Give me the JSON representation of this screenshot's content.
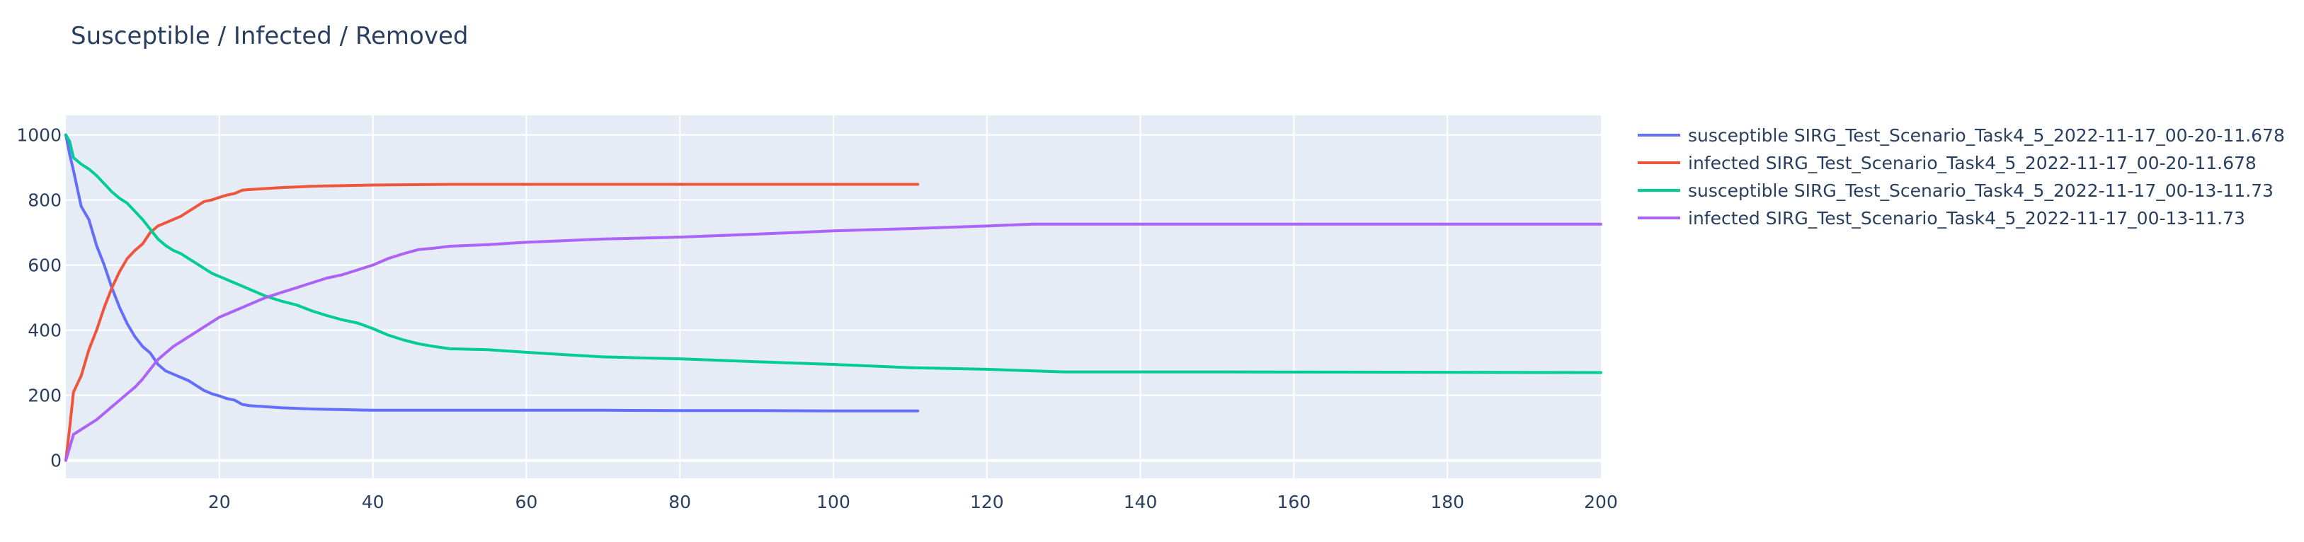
{
  "chart_data": {
    "type": "line",
    "title": "Susceptible / Infected / Removed",
    "xlabel": "",
    "ylabel": "",
    "xlim": [
      0,
      200
    ],
    "ylim": [
      -55,
      1060
    ],
    "x_ticks": [
      20,
      40,
      60,
      80,
      100,
      120,
      140,
      160,
      180,
      200
    ],
    "y_ticks": [
      0,
      200,
      400,
      600,
      800,
      1000
    ],
    "grid": true,
    "legend_position": "right",
    "colors": {
      "plot_background": "#e5ecf6",
      "grid": "#ffffff",
      "text": "#2a3f5f"
    },
    "series": [
      {
        "name": "susceptible SIRG_Test_Scenario_Task4_5_2022-11-17_00-20-11.678",
        "color": "#636efa",
        "x": [
          0,
          0.5,
          1,
          2,
          3,
          4,
          5,
          6,
          7,
          8,
          9,
          10,
          11,
          12,
          13,
          14,
          15,
          16,
          17,
          18,
          19,
          20,
          21,
          22,
          23,
          24,
          26,
          28,
          30,
          32,
          34,
          36,
          38,
          40,
          45,
          50,
          60,
          70,
          80,
          90,
          100,
          110,
          111
        ],
        "y": [
          1000,
          940,
          890,
          780,
          740,
          660,
          600,
          530,
          470,
          420,
          380,
          350,
          330,
          295,
          275,
          265,
          255,
          245,
          230,
          215,
          205,
          198,
          190,
          185,
          172,
          168,
          165,
          162,
          160,
          158,
          157,
          156,
          155,
          154,
          154,
          154,
          154,
          154,
          153,
          153,
          152,
          152,
          152
        ]
      },
      {
        "name": "infected SIRG_Test_Scenario_Task4_5_2022-11-17_00-20-11.678",
        "color": "#ef553b",
        "x": [
          0,
          0.5,
          1,
          2,
          3,
          4,
          5,
          6,
          7,
          8,
          9,
          10,
          11,
          12,
          13,
          14,
          15,
          16,
          17,
          18,
          19,
          20,
          21,
          22,
          23,
          24,
          26,
          28,
          30,
          32,
          34,
          36,
          38,
          40,
          45,
          50,
          60,
          70,
          80,
          90,
          100,
          110,
          111
        ],
        "y": [
          0,
          100,
          210,
          260,
          340,
          400,
          470,
          530,
          580,
          620,
          645,
          665,
          700,
          720,
          730,
          740,
          750,
          765,
          780,
          795,
          800,
          808,
          815,
          820,
          830,
          832,
          835,
          838,
          840,
          842,
          843,
          844,
          845,
          846,
          847,
          848,
          848,
          848,
          848,
          848,
          848,
          848,
          848
        ]
      },
      {
        "name": "susceptible SIRG_Test_Scenario_Task4_5_2022-11-17_00-13-11.73",
        "color": "#00cc96",
        "x": [
          0,
          0.5,
          1,
          2,
          3,
          4,
          5,
          6,
          7,
          8,
          9,
          10,
          11,
          12,
          13,
          14,
          15,
          16,
          17,
          18,
          19,
          20,
          22,
          24,
          26,
          28,
          30,
          32,
          34,
          36,
          38,
          40,
          42,
          44,
          46,
          48,
          50,
          55,
          60,
          65,
          70,
          80,
          90,
          100,
          110,
          120,
          130,
          150,
          200
        ],
        "y": [
          1000,
          980,
          930,
          910,
          895,
          875,
          850,
          825,
          805,
          790,
          765,
          740,
          710,
          680,
          660,
          645,
          635,
          620,
          605,
          590,
          575,
          565,
          545,
          525,
          505,
          490,
          478,
          460,
          445,
          432,
          422,
          405,
          385,
          370,
          358,
          350,
          343,
          340,
          332,
          325,
          318,
          312,
          303,
          295,
          285,
          280,
          272,
          272,
          270
        ]
      },
      {
        "name": "infected SIRG_Test_Scenario_Task4_5_2022-11-17_00-13-11.73",
        "color": "#ab63fa",
        "x": [
          0,
          0.5,
          1,
          2,
          3,
          4,
          5,
          6,
          7,
          8,
          9,
          10,
          11,
          12,
          13,
          14,
          15,
          16,
          17,
          18,
          19,
          20,
          22,
          24,
          26,
          28,
          30,
          32,
          34,
          36,
          38,
          40,
          42,
          44,
          46,
          48,
          50,
          55,
          60,
          65,
          70,
          80,
          90,
          100,
          110,
          120,
          126,
          150,
          200
        ],
        "y": [
          0,
          40,
          80,
          95,
          110,
          125,
          145,
          165,
          185,
          205,
          225,
          250,
          280,
          310,
          330,
          350,
          365,
          380,
          395,
          410,
          425,
          440,
          460,
          480,
          500,
          515,
          530,
          545,
          560,
          570,
          585,
          600,
          620,
          635,
          648,
          652,
          658,
          663,
          670,
          675,
          680,
          686,
          695,
          705,
          712,
          720,
          726,
          726,
          726
        ]
      }
    ]
  }
}
